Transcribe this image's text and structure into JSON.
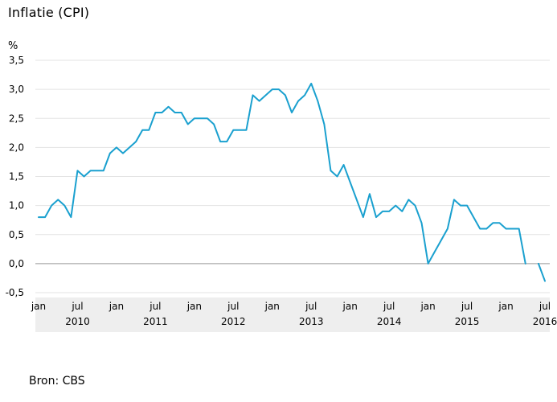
{
  "chart_data": {
    "type": "line",
    "title": "Inflatie (CPI)",
    "ylabel": "%",
    "ylim": [
      -0.5,
      3.5
    ],
    "yticks": [
      "3,5",
      "3,0",
      "2,5",
      "2,0",
      "1,5",
      "1,0",
      "0,5",
      "0,0",
      "-0,5"
    ],
    "yticks_values": [
      3.5,
      3.0,
      2.5,
      2.0,
      1.5,
      1.0,
      0.5,
      0.0,
      -0.5
    ],
    "xticks_months": [
      "jan",
      "jul",
      "jan",
      "jul",
      "jan",
      "jul",
      "jan",
      "jul",
      "jan",
      "jul",
      "jan",
      "jul",
      "jan",
      "jul"
    ],
    "xticks_years": [
      "2010",
      "2011",
      "2012",
      "2013",
      "2014",
      "2015",
      "2016"
    ],
    "xlim": [
      "2010-01",
      "2016-07"
    ],
    "grid": true,
    "line_color": "#1aa0cf",
    "series": [
      {
        "x": [
          "2010-01",
          "2010-02",
          "2010-03",
          "2010-04",
          "2010-05",
          "2010-06",
          "2010-07",
          "2010-08",
          "2010-09",
          "2010-10",
          "2010-11",
          "2010-12",
          "2011-01",
          "2011-02",
          "2011-03",
          "2011-04",
          "2011-05",
          "2011-06",
          "2011-07",
          "2011-08",
          "2011-09",
          "2011-10",
          "2011-11",
          "2011-12",
          "2012-01",
          "2012-02",
          "2012-03",
          "2012-04",
          "2012-05",
          "2012-06",
          "2012-07",
          "2012-08",
          "2012-09",
          "2012-10",
          "2012-11",
          "2012-12",
          "2013-01",
          "2013-02",
          "2013-03",
          "2013-04",
          "2013-05",
          "2013-06",
          "2013-07",
          "2013-08",
          "2013-09",
          "2013-10",
          "2013-11",
          "2013-12",
          "2014-01",
          "2014-02",
          "2014-03",
          "2014-04",
          "2014-05",
          "2014-06",
          "2014-07",
          "2014-08",
          "2014-09",
          "2014-10",
          "2014-11",
          "2014-12",
          "2015-01",
          "2015-02",
          "2015-03",
          "2015-04",
          "2015-05",
          "2015-06",
          "2015-07",
          "2015-08",
          "2015-09",
          "2015-10",
          "2015-11",
          "2015-12",
          "2016-01",
          "2016-02",
          "2016-03",
          "2016-04",
          "2016-05",
          "2016-06",
          "2016-07"
        ],
        "values": [
          0.8,
          0.8,
          1.0,
          1.1,
          1.0,
          0.8,
          1.6,
          1.5,
          1.6,
          1.6,
          1.6,
          1.9,
          2.0,
          1.9,
          2.0,
          2.1,
          2.3,
          2.3,
          2.6,
          2.6,
          2.7,
          2.6,
          2.6,
          2.4,
          2.5,
          2.5,
          2.5,
          2.4,
          2.1,
          2.1,
          2.3,
          2.3,
          2.3,
          2.9,
          2.8,
          2.9,
          3.0,
          3.0,
          2.9,
          2.6,
          2.8,
          2.9,
          3.1,
          2.8,
          2.4,
          1.6,
          1.5,
          1.7,
          1.4,
          1.1,
          0.8,
          1.2,
          0.8,
          0.9,
          0.9,
          1.0,
          0.9,
          1.1,
          1.0,
          0.7,
          0.0,
          0.2,
          0.4,
          0.6,
          1.1,
          1.0,
          1.0,
          0.8,
          0.6,
          0.6,
          0.7,
          0.7,
          0.6,
          0.6,
          0.6,
          0.0,
          null,
          0.0,
          -0.3
        ]
      }
    ]
  },
  "source": "Bron: CBS"
}
